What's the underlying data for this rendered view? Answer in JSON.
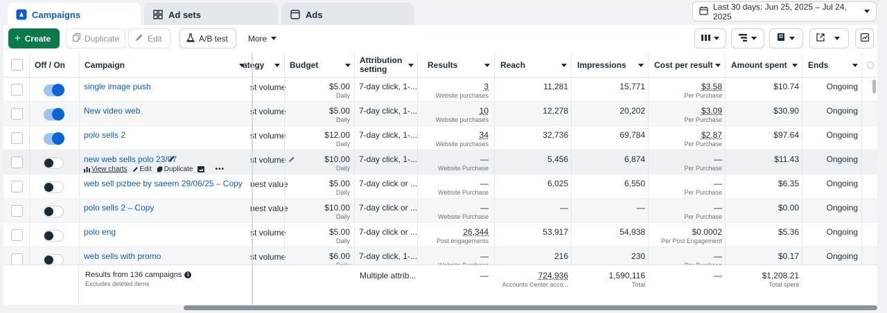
{
  "tabs": {
    "campaigns": "Campaigns",
    "adsets": "Ad sets",
    "ads": "Ads"
  },
  "date_range": "Last 30 days: Jun 25, 2025 – Jul 24, 2025",
  "toolbar": {
    "create": "Create",
    "duplicate": "Duplicate",
    "edit": "Edit",
    "ab_test": "A/B test",
    "more": "More"
  },
  "headers": {
    "off_on": "Off / On",
    "campaign": "Campaign",
    "strategy": "ategy",
    "budget": "Budget",
    "attribution_1": "Attribution",
    "attribution_2": "setting",
    "results": "Results",
    "reach": "Reach",
    "impressions": "Impressions",
    "cost_per_result": "Cost per result",
    "amount_spent": "Amount spent",
    "ends": "Ends"
  },
  "rows": [
    {
      "on": true,
      "name": "single image push",
      "strategy": "st volume",
      "budget": "$5.00",
      "budget_sub": "Daily",
      "attribution": "7-day click, 1-...",
      "results": "3",
      "results_sub": "Website purchases",
      "reach": "11,281",
      "impressions": "15,771",
      "cpr": "$3.58",
      "cpr_sub": "Per Purchase",
      "spent": "$10.74",
      "ends": "Ongoing"
    },
    {
      "on": true,
      "name": "New video web",
      "strategy": "st volume",
      "budget": "$5.00",
      "budget_sub": "Daily",
      "attribution": "7-day click, 1-...",
      "results": "10",
      "results_sub": "Website purchases",
      "reach": "12,278",
      "impressions": "20,202",
      "cpr": "$3.09",
      "cpr_sub": "Per Purchase",
      "spent": "$30.90",
      "ends": "Ongoing"
    },
    {
      "on": true,
      "name": "polo sells 2",
      "strategy": "st volume",
      "budget": "$12.00",
      "budget_sub": "Daily",
      "attribution": "7-day click, 1-...",
      "results": "34",
      "results_sub": "Website purchases",
      "reach": "32,736",
      "impressions": "69,784",
      "cpr": "$2.87",
      "cpr_sub": "Per Purchase",
      "spent": "$97.64",
      "ends": "Ongoing"
    },
    {
      "on": false,
      "name": "new web sells polo 23/07",
      "strategy": "st volume",
      "budget": "$10.00",
      "budget_sub": "Daily",
      "attribution": "7-day click, 1-...",
      "results": "—",
      "results_sub": "Website Purchase",
      "reach": "5,456",
      "impressions": "6,874",
      "cpr": "—",
      "cpr_sub": "Per Purchase",
      "spent": "$11.43",
      "ends": "Ongoing"
    },
    {
      "on": false,
      "name": "web sell pizbee by saeem 29/06/25 – Copy",
      "strategy": "nest value",
      "budget": "$5.00",
      "budget_sub": "Daily",
      "attribution": "7-day click or ...",
      "results": "—",
      "results_sub": "Website Purchase",
      "reach": "6,025",
      "impressions": "6,550",
      "cpr": "—",
      "cpr_sub": "Per Purchase",
      "spent": "$6.35",
      "ends": "Ongoing"
    },
    {
      "on": false,
      "name": "polo sells 2 – Copy",
      "strategy": "nest value",
      "budget": "$10.00",
      "budget_sub": "Daily",
      "attribution": "7-day click or ...",
      "results": "—",
      "results_sub": "Website Purchase",
      "reach": "—",
      "impressions": "—",
      "cpr": "—",
      "cpr_sub": "Per Purchase",
      "spent": "$0.00",
      "ends": "Ongoing"
    },
    {
      "on": false,
      "name": "polo eng",
      "strategy": "st volume",
      "budget": "$5.00",
      "budget_sub": "Daily",
      "attribution": "7-day click or ...",
      "results": "26,344",
      "results_sub": "Post engagements",
      "reach": "53,917",
      "impressions": "54,938",
      "cpr": "$0.0002",
      "cpr_sub": "Per Post Engagement",
      "spent": "$5.36",
      "ends": "Ongoing"
    },
    {
      "on": false,
      "name": "web sells with promo",
      "strategy": "st volume",
      "budget": "$6.00",
      "budget_sub": "Daily",
      "attribution": "7-day click, 1-...",
      "results": "—",
      "results_sub": "Website Purchase",
      "reach": "216",
      "impressions": "230",
      "cpr": "—",
      "cpr_sub": "Per Purchase",
      "spent": "$0.17",
      "ends": "Ongoing"
    }
  ],
  "row_actions": {
    "view_charts": "View charts",
    "edit": "Edit",
    "duplicate": "Duplicate"
  },
  "footer": {
    "results_from": "Results from 136 campaigns",
    "excludes": "Excludes deleted items",
    "attribution": "Multiple attrib...",
    "results": "—",
    "reach": "724,936",
    "reach_sub": "Accounts Center acco...",
    "impressions": "1,590,116",
    "impressions_sub": "Total",
    "cpr": "—",
    "spent": "$1,208.21",
    "spent_sub": "Total spent"
  },
  "colors": {
    "accent": "#0a5bd6",
    "create": "#0a7a4b",
    "toggle_on": "#0a66d6"
  }
}
